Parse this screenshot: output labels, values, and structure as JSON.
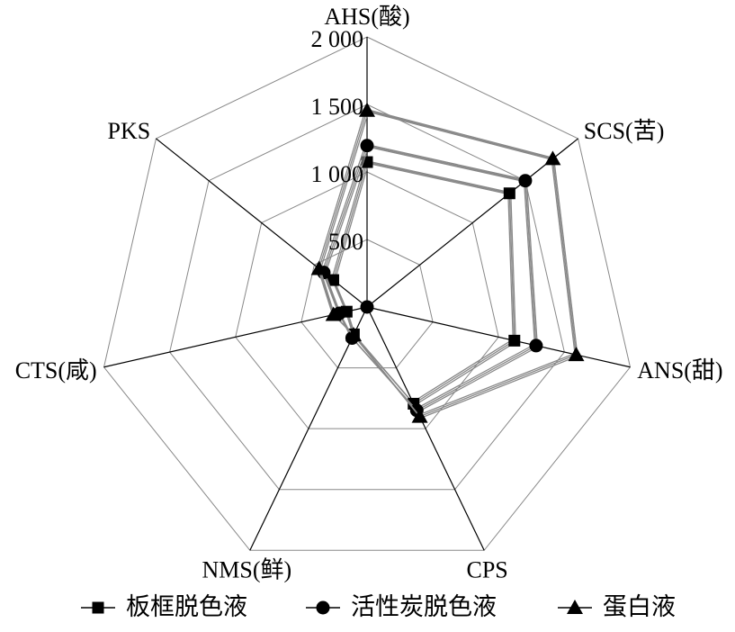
{
  "chart_data": {
    "type": "radar",
    "axes": [
      "AHS(酸)",
      "SCS(苦)",
      "ANS(甜)",
      "CPS",
      "NMS(鲜)",
      "CTS(咸)",
      "PKS"
    ],
    "rlim": [
      0,
      2000
    ],
    "ticks": [
      500,
      1000,
      1500,
      2000
    ],
    "tick_labels": [
      "500",
      "1 000",
      "1 500",
      "2 000"
    ],
    "grid": true,
    "legend_position": "bottom",
    "series": [
      {
        "name": "板框脱色液",
        "marker": "square",
        "values": [
          1073,
          1350,
          1120,
          795,
          225,
          155,
          320
        ]
      },
      {
        "name": "活性炭脱色液",
        "marker": "circle",
        "values": [
          1195,
          1500,
          1285,
          850,
          255,
          210,
          410
        ]
      },
      {
        "name": "蛋白液",
        "marker": "triangle",
        "values": [
          1455,
          1760,
          1590,
          900,
          230,
          255,
          455
        ]
      }
    ],
    "colors": {
      "line": "#888888",
      "marker": "#000000",
      "grid": "#888888",
      "axis": "#000000"
    }
  }
}
